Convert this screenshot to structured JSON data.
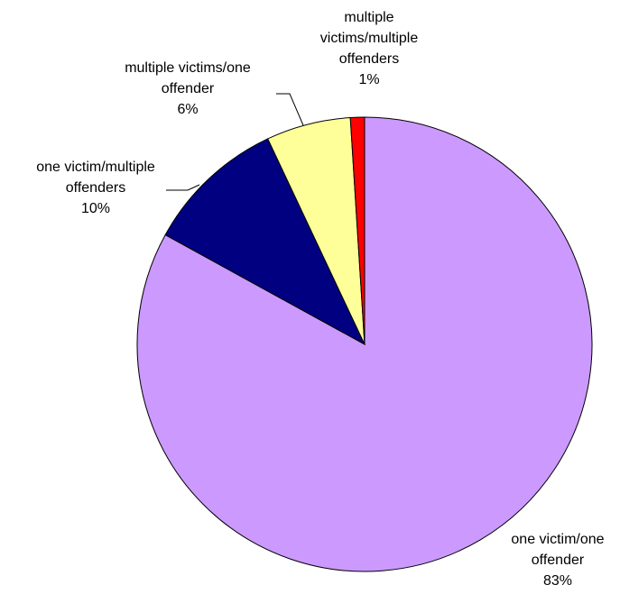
{
  "chart_data": {
    "type": "pie",
    "title": "",
    "slices": [
      {
        "label_lines": [
          "one victim/one",
          "offender"
        ],
        "percent_label": "83%",
        "value": 83,
        "color": "#CC99FF"
      },
      {
        "label_lines": [
          "one victim/multiple",
          "offenders"
        ],
        "percent_label": "10%",
        "value": 10,
        "color": "#000080"
      },
      {
        "label_lines": [
          "multiple victims/one",
          "offender"
        ],
        "percent_label": "6%",
        "value": 6,
        "color": "#FFFF99"
      },
      {
        "label_lines": [
          "multiple",
          "victims/multiple",
          "offenders"
        ],
        "percent_label": "1%",
        "value": 1,
        "color": "#FF0000"
      }
    ],
    "start_angle_deg": 0,
    "direction": "clockwise-from-top"
  }
}
